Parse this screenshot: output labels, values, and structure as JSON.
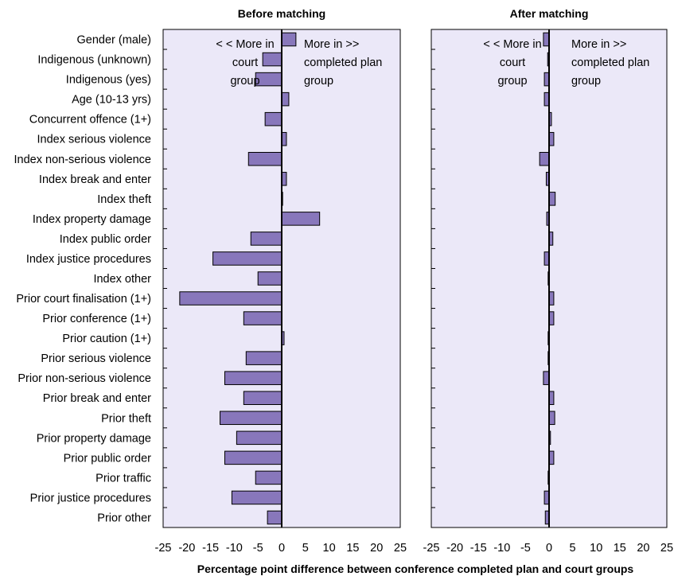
{
  "chart_data": {
    "type": "bar",
    "orientation": "horizontal",
    "xlabel": "Percentage point difference between conference completed plan and court groups",
    "xlim": [
      -25,
      25
    ],
    "xticks": [
      -25,
      -20,
      -15,
      -10,
      -5,
      0,
      5,
      10,
      15,
      20,
      25
    ],
    "categories": [
      "Gender (male)",
      "Indigenous (unknown)",
      "Indigenous (yes)",
      "Age (10-13 yrs)",
      "Concurrent offence (1+)",
      "Index serious violence",
      "Index non-serious violence",
      "Index break and enter",
      "Index theft",
      "Index property damage",
      "Index public order",
      "Index justice procedures",
      "Index other",
      "Prior court finalisation (1+)",
      "Prior conference (1+)",
      "Prior caution (1+)",
      "Prior serious violence",
      "Prior non-serious violence",
      "Prior break and enter",
      "Prior theft",
      "Prior property damage",
      "Prior public order",
      "Prior traffic",
      "Prior justice procedures",
      "Prior other"
    ],
    "panels": [
      {
        "title": "Before matching",
        "annotation_left": [
          "< < More in",
          "court",
          "group"
        ],
        "annotation_right": [
          "More  in  >>",
          "completed plan",
          "group"
        ],
        "values": [
          3,
          -4,
          -5.5,
          1.5,
          -3.5,
          1,
          -7,
          1,
          0,
          8,
          -6.5,
          -14.5,
          -5,
          -21.5,
          -8,
          0.5,
          -7.5,
          -12,
          -8,
          -13,
          -9.5,
          -12,
          -5.5,
          -10.5,
          -3
        ]
      },
      {
        "title": "After matching",
        "annotation_left": [
          "< < More in",
          "court",
          "group"
        ],
        "annotation_right": [
          "More  in  >>",
          "completed plan",
          "group"
        ],
        "values": [
          -1.2,
          -0.3,
          -1,
          -1,
          0.5,
          1,
          -2,
          -0.6,
          1.3,
          -0.5,
          0.8,
          -1,
          -0.2,
          1,
          1,
          -0.2,
          -0.2,
          -1.2,
          1,
          1.2,
          0.3,
          1,
          -0.2,
          -1,
          -0.8
        ]
      }
    ],
    "colors": {
      "bar": "#8877bb",
      "panel_bg": "#ebe8f8"
    },
    "grid": false,
    "legend": "none"
  }
}
